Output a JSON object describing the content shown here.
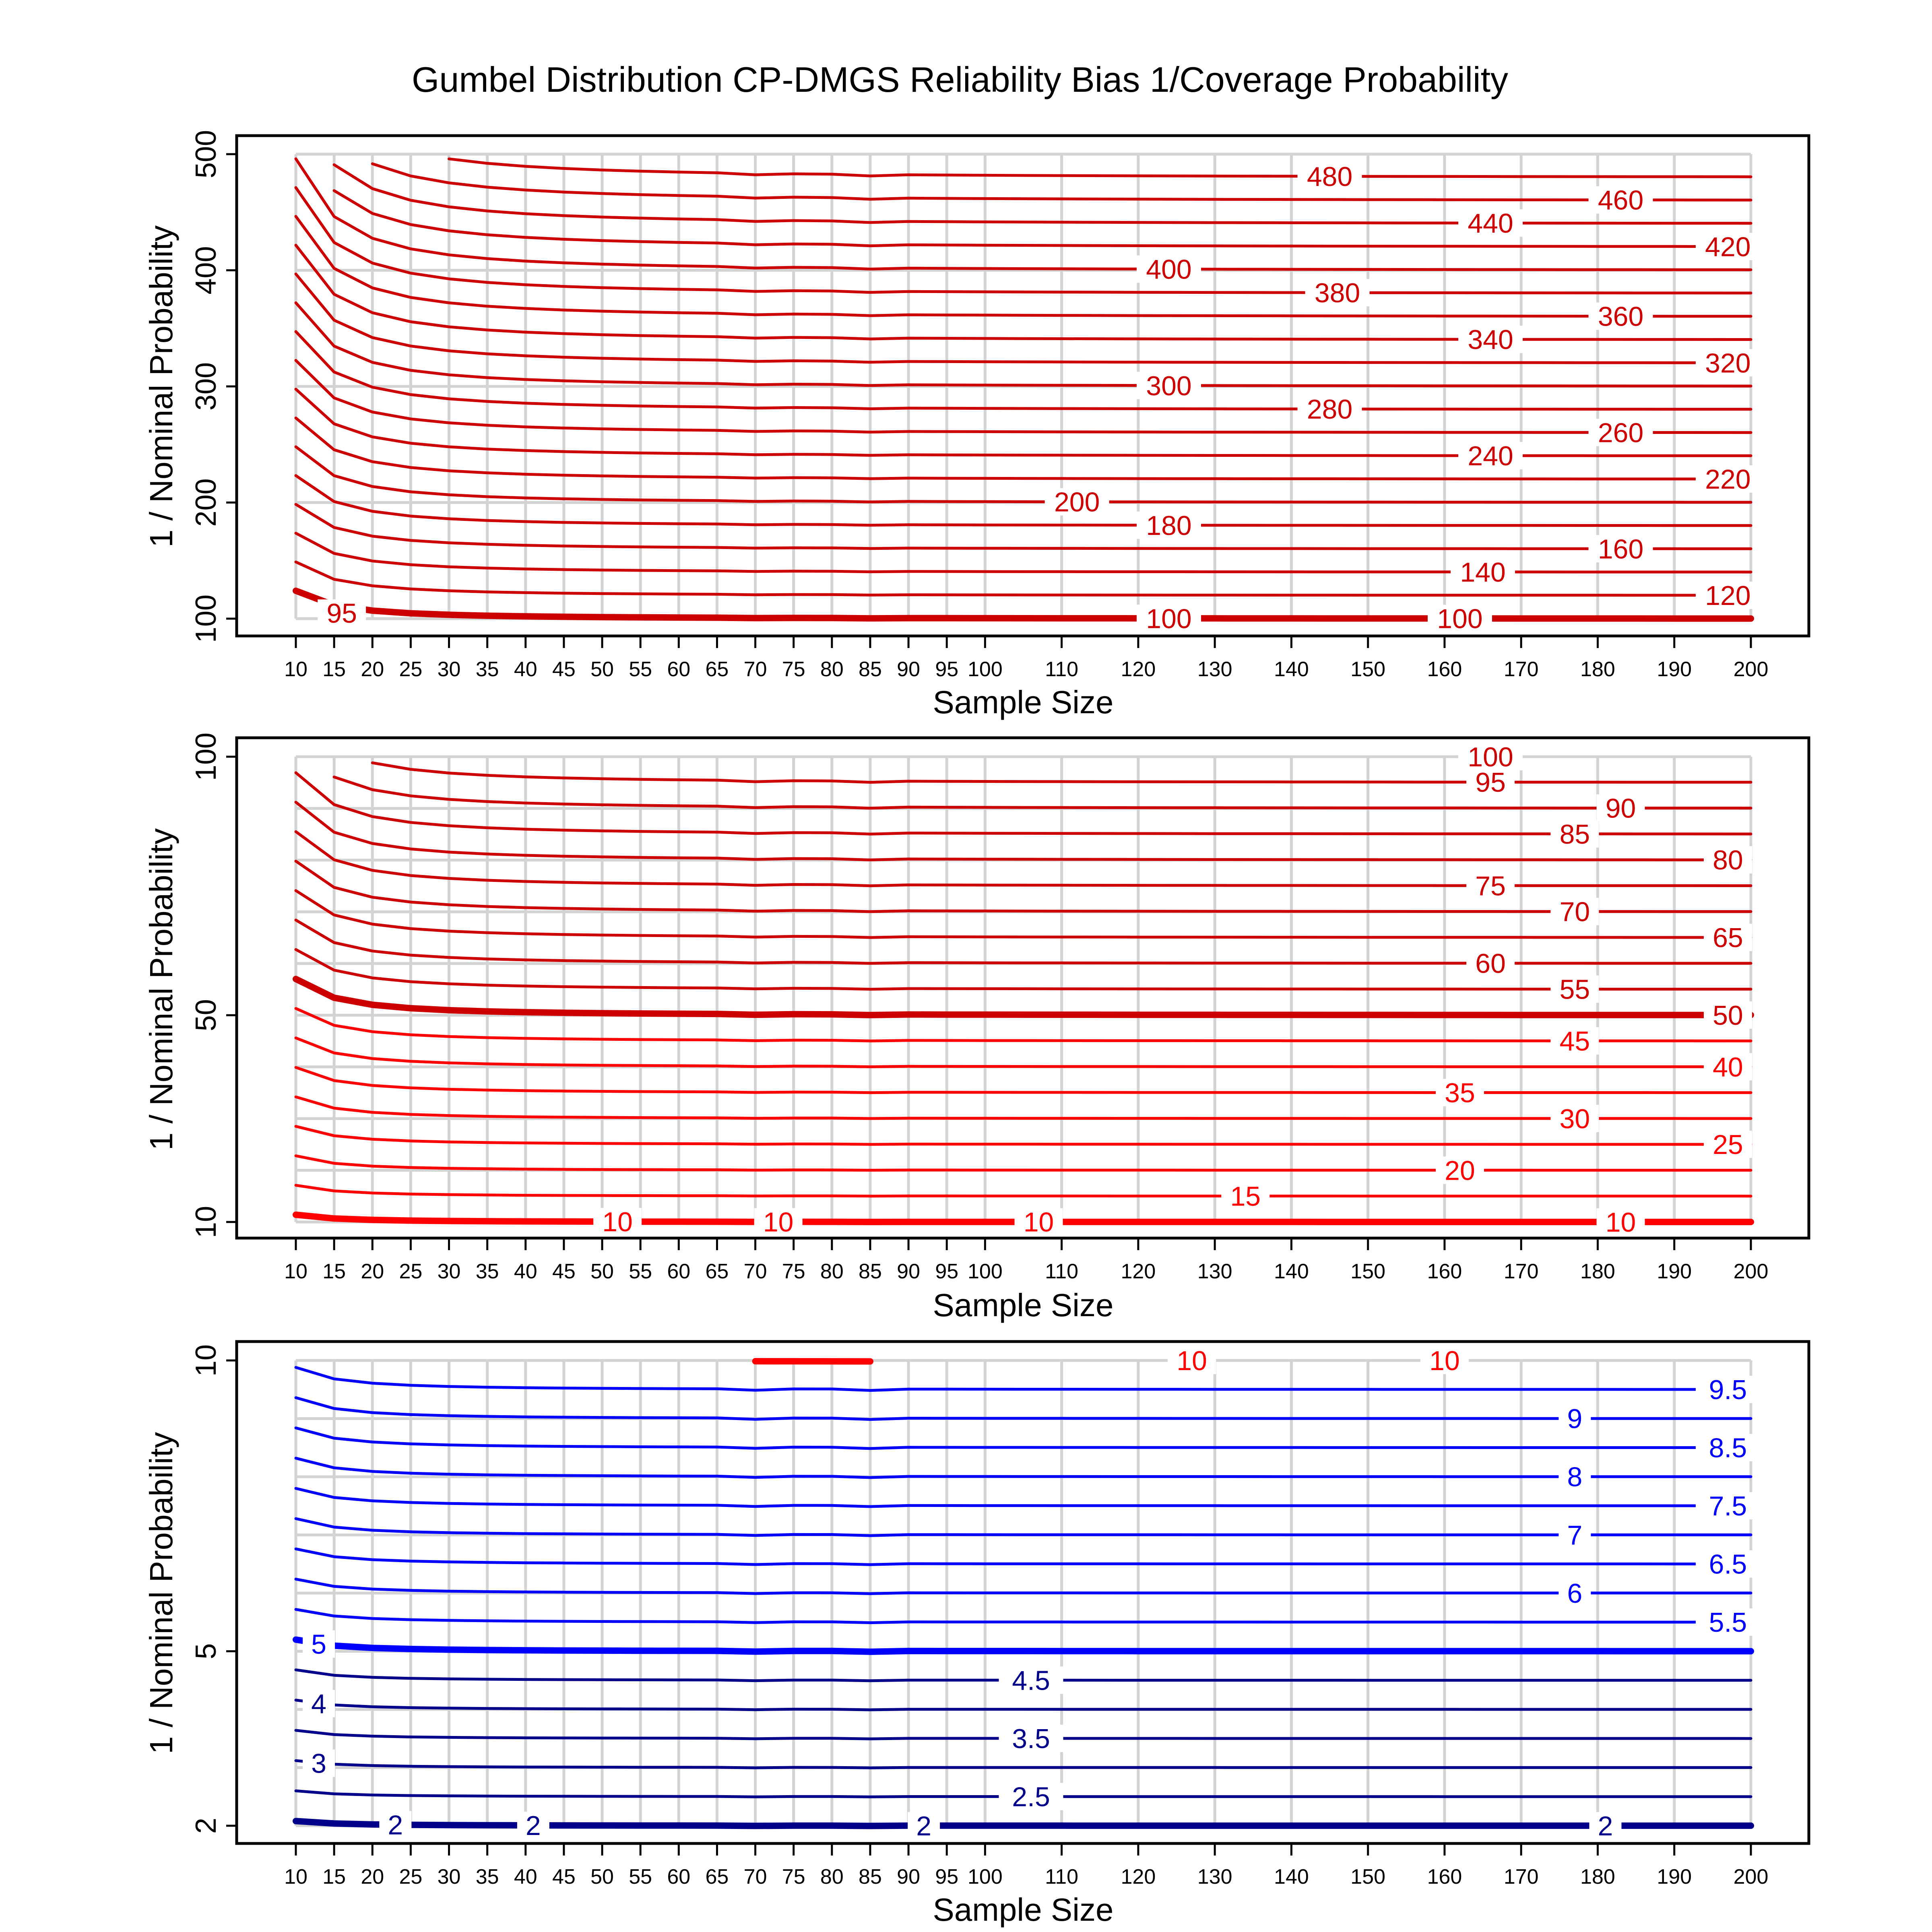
{
  "chart_data": {
    "type": "line",
    "title": "Gumbel Distribution CP-DMGS Reliability Bias 1/Coverage Probability",
    "x_ticks": [
      10,
      15,
      20,
      25,
      30,
      35,
      40,
      45,
      50,
      55,
      60,
      65,
      70,
      75,
      80,
      85,
      90,
      95,
      100,
      110,
      120,
      130,
      140,
      150,
      160,
      170,
      180,
      190,
      200
    ],
    "xlim": [
      10,
      200
    ],
    "panels": [
      {
        "xlabel": "Sample Size",
        "ylabel": "1 / Nominal Probability",
        "ylim": [
          100,
          500
        ],
        "y_ticks": [
          100,
          200,
          300,
          400,
          500
        ],
        "y_grid": [
          100,
          200,
          300,
          400,
          500
        ],
        "line_color": "#CC0000",
        "levels": [
          100,
          120,
          140,
          160,
          180,
          200,
          220,
          240,
          260,
          280,
          300,
          320,
          340,
          360,
          380,
          400,
          420,
          440,
          460,
          480,
          500
        ],
        "bold_levels": [
          100
        ],
        "small_n_excess_at_n10": 0.24,
        "contour_labels": [
          {
            "text": "480",
            "x": 145
          },
          {
            "text": "460",
            "x": 183
          },
          {
            "text": "440",
            "x": 166
          },
          {
            "text": "420",
            "x": 197
          },
          {
            "text": "400",
            "x": 124
          },
          {
            "text": "380",
            "x": 146
          },
          {
            "text": "360",
            "x": 183
          },
          {
            "text": "340",
            "x": 166
          },
          {
            "text": "320",
            "x": 197
          },
          {
            "text": "300",
            "x": 124
          },
          {
            "text": "280",
            "x": 145
          },
          {
            "text": "260",
            "x": 183
          },
          {
            "text": "240",
            "x": 166
          },
          {
            "text": "220",
            "x": 197
          },
          {
            "text": "200",
            "x": 112
          },
          {
            "text": "180",
            "x": 124
          },
          {
            "text": "160",
            "x": 183
          },
          {
            "text": "140",
            "x": 165
          },
          {
            "text": "120",
            "x": 197
          },
          {
            "text": "100",
            "x": 124
          },
          {
            "text": "100",
            "x": 162
          },
          {
            "text": "95",
            "x": 16
          }
        ]
      },
      {
        "xlabel": "Sample Size",
        "ylabel": "1 / Nominal Probability",
        "ylim": [
          10,
          100
        ],
        "y_ticks": [
          10,
          50,
          100
        ],
        "y_grid": [
          10,
          20,
          30,
          40,
          50,
          60,
          70,
          80,
          90,
          100
        ],
        "line_color": "#CC0000",
        "line_color_low": "#FF0000",
        "color_split_level": 50,
        "levels": [
          10,
          15,
          20,
          25,
          30,
          35,
          40,
          45,
          50,
          55,
          60,
          65,
          70,
          75,
          80,
          85,
          90,
          95,
          100
        ],
        "bold_levels": [
          50,
          10
        ],
        "small_n_excess_at_n10": 0.14,
        "contour_labels": [
          {
            "text": "100",
            "x": 166
          },
          {
            "text": "95",
            "x": 166
          },
          {
            "text": "90",
            "x": 183
          },
          {
            "text": "85",
            "x": 177
          },
          {
            "text": "80",
            "x": 197
          },
          {
            "text": "75",
            "x": 166
          },
          {
            "text": "70",
            "x": 177
          },
          {
            "text": "65",
            "x": 197
          },
          {
            "text": "60",
            "x": 166
          },
          {
            "text": "55",
            "x": 177
          },
          {
            "text": "50",
            "x": 197
          },
          {
            "text": "45",
            "x": 177
          },
          {
            "text": "40",
            "x": 197
          },
          {
            "text": "35",
            "x": 162
          },
          {
            "text": "30",
            "x": 177
          },
          {
            "text": "25",
            "x": 197
          },
          {
            "text": "20",
            "x": 162
          },
          {
            "text": "15",
            "x": 134
          },
          {
            "text": "10",
            "x": 52
          },
          {
            "text": "10",
            "x": 73
          },
          {
            "text": "10",
            "x": 107
          },
          {
            "text": "10",
            "x": 183
          }
        ]
      },
      {
        "xlabel": "Sample Size",
        "ylabel": "1 / Nominal Probability",
        "ylim": [
          2,
          10
        ],
        "y_ticks": [
          2,
          5,
          10
        ],
        "y_grid": [
          2,
          3,
          4,
          5,
          6,
          7,
          8,
          9,
          10
        ],
        "line_color": "#0000FF",
        "line_color_low": "#00008B",
        "color_split_level": 5,
        "top_line_color": "#FF0000",
        "levels": [
          2,
          2.5,
          3,
          3.5,
          4,
          4.5,
          5,
          5.5,
          6,
          6.5,
          7,
          7.5,
          8,
          8.5,
          9,
          9.5,
          10
        ],
        "bold_levels": [
          5,
          2,
          10
        ],
        "small_n_excess_at_n10": 0.04,
        "contour_labels": [
          {
            "text": "10",
            "x": 127
          },
          {
            "text": "10",
            "x": 160
          },
          {
            "text": "9.5",
            "x": 197
          },
          {
            "text": "9",
            "x": 177
          },
          {
            "text": "8.5",
            "x": 197
          },
          {
            "text": "8",
            "x": 177
          },
          {
            "text": "7.5",
            "x": 197
          },
          {
            "text": "7",
            "x": 177
          },
          {
            "text": "6.5",
            "x": 197
          },
          {
            "text": "6",
            "x": 177
          },
          {
            "text": "5.5",
            "x": 197
          },
          {
            "text": "5",
            "x": 13
          },
          {
            "text": "4.5",
            "x": 106
          },
          {
            "text": "4",
            "x": 13
          },
          {
            "text": "3.5",
            "x": 106
          },
          {
            "text": "3",
            "x": 13
          },
          {
            "text": "2.5",
            "x": 106
          },
          {
            "text": "2",
            "x": 23
          },
          {
            "text": "2",
            "x": 41
          },
          {
            "text": "2",
            "x": 92
          },
          {
            "text": "2",
            "x": 181
          }
        ]
      }
    ]
  }
}
